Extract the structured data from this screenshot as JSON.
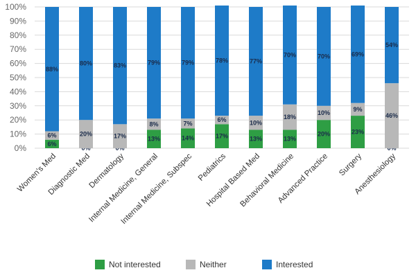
{
  "chart_data": {
    "type": "bar",
    "stacked": true,
    "title": "",
    "xlabel": "",
    "ylabel": "",
    "ylim": [
      0,
      100
    ],
    "yticks": [
      "0%",
      "10%",
      "20%",
      "30%",
      "40%",
      "50%",
      "60%",
      "70%",
      "80%",
      "90%",
      "100%"
    ],
    "grid": true,
    "legend_position": "bottom",
    "categories": [
      "Women's Med",
      "Diagnostic Med",
      "Dermatology",
      "Internal Medicine, General",
      "Internal Medicine, Subspec",
      "Pediatrics",
      "Hospital Based Med",
      "Behavioral Medicine",
      "Advanced Practice",
      "Surgery",
      "Anesthesiology"
    ],
    "series": [
      {
        "name": "Not interested",
        "color": "#2e9e44",
        "values": [
          6,
          0,
          0,
          13,
          14,
          17,
          13,
          13,
          20,
          23,
          0
        ]
      },
      {
        "name": "Neither",
        "color": "#b8b8b8",
        "values": [
          6,
          20,
          17,
          8,
          7,
          6,
          10,
          18,
          10,
          9,
          46
        ]
      },
      {
        "name": "Interested",
        "color": "#1e7bc8",
        "values": [
          88,
          80,
          83,
          79,
          79,
          78,
          77,
          70,
          70,
          69,
          54
        ]
      }
    ]
  }
}
